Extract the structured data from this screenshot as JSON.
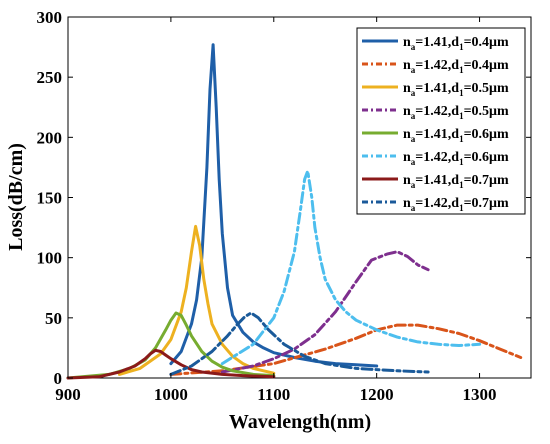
{
  "chart_data": {
    "type": "line",
    "title": "",
    "xlabel": "Wavelength(nm)",
    "ylabel": "Loss(dB/cm)",
    "xlim": [
      900,
      1350
    ],
    "ylim": [
      0,
      300
    ],
    "xticks": [
      900,
      1000,
      1100,
      1200,
      1300
    ],
    "yticks": [
      0,
      50,
      100,
      150,
      200,
      250,
      300
    ],
    "grid": false,
    "legend_position": "top-right",
    "series": [
      {
        "name": "n_a=1.41,d_1=0.4μm",
        "legend": {
          "n_sub": "a",
          "n_val": "=1.41,d",
          "d_sub": "1",
          "d_val": "=0.4μm"
        },
        "color": "#1f5fa8",
        "style": "solid",
        "x": [
          1000,
          1010,
          1020,
          1025,
          1030,
          1035,
          1038,
          1041,
          1044,
          1047,
          1050,
          1055,
          1060,
          1070,
          1080,
          1090,
          1100,
          1120,
          1140,
          1160,
          1180,
          1200
        ],
        "y": [
          12,
          22,
          45,
          65,
          100,
          175,
          240,
          277,
          225,
          165,
          120,
          75,
          52,
          38,
          30,
          25,
          21,
          17,
          14,
          12,
          11,
          10
        ]
      },
      {
        "name": "n_a=1.42,d_1=0.4μm",
        "legend": {
          "n_sub": "a",
          "n_val": "=1.42,d",
          "d_sub": "1",
          "d_val": "=0.4μm"
        },
        "color": "#d9541a",
        "style": "dashdot",
        "x": [
          1000,
          1050,
          1100,
          1150,
          1180,
          1200,
          1220,
          1240,
          1260,
          1280,
          1300,
          1320,
          1340
        ],
        "y": [
          3,
          6,
          12,
          24,
          33,
          40,
          44,
          44,
          41,
          37,
          31,
          24,
          17
        ]
      },
      {
        "name": "n_a=1.41,d_1=0.5μm",
        "legend": {
          "n_sub": "a",
          "n_val": "=1.41,d",
          "d_sub": "1",
          "d_val": "=0.5μm"
        },
        "color": "#edb120",
        "style": "solid",
        "x": [
          950,
          970,
          990,
          1000,
          1010,
          1015,
          1020,
          1024,
          1028,
          1032,
          1036,
          1040,
          1050,
          1060,
          1070,
          1080,
          1090,
          1100
        ],
        "y": [
          3,
          8,
          20,
          32,
          55,
          75,
          105,
          126,
          110,
          82,
          62,
          45,
          28,
          18,
          12,
          8,
          6,
          4
        ]
      },
      {
        "name": "n_a=1.42,d_1=0.5μm",
        "legend": {
          "n_sub": "a",
          "n_val": "=1.42,d",
          "d_sub": "1",
          "d_val": "=0.5μm"
        },
        "color": "#7e2f8e",
        "style": "dashdot",
        "x": [
          1050,
          1080,
          1100,
          1120,
          1140,
          1160,
          1180,
          1195,
          1210,
          1220,
          1230,
          1240,
          1250
        ],
        "y": [
          5,
          10,
          16,
          24,
          36,
          55,
          80,
          98,
          103,
          105,
          101,
          94,
          90
        ]
      },
      {
        "name": "n_a=1.41,d_1=0.6μm",
        "legend": {
          "n_sub": "a",
          "n_val": "=1.41,d",
          "d_sub": "1",
          "d_val": "=0.6μm"
        },
        "color": "#77ac30",
        "style": "solid",
        "x": [
          900,
          940,
          960,
          975,
          985,
          995,
          1000,
          1005,
          1010,
          1015,
          1020,
          1030,
          1040,
          1050,
          1060,
          1080,
          1100
        ],
        "y": [
          0,
          3,
          8,
          15,
          25,
          40,
          48,
          54,
          52,
          44,
          35,
          22,
          14,
          9,
          6,
          3,
          2
        ]
      },
      {
        "name": "n_a=1.42,d_1=0.6μm",
        "legend": {
          "n_sub": "a",
          "n_val": "=1.42,d",
          "d_sub": "1",
          "d_val": "=0.6μm"
        },
        "color": "#4dbeee",
        "style": "dashdot",
        "x": [
          1050,
          1080,
          1100,
          1110,
          1120,
          1126,
          1130,
          1133,
          1137,
          1140,
          1145,
          1150,
          1160,
          1170,
          1180,
          1200,
          1220,
          1240,
          1260,
          1280,
          1300
        ],
        "y": [
          12,
          28,
          50,
          72,
          105,
          140,
          165,
          172,
          150,
          125,
          100,
          82,
          65,
          55,
          48,
          40,
          34,
          30,
          28,
          27,
          28
        ]
      },
      {
        "name": "n_a=1.41,d_1=0.7μm",
        "legend": {
          "n_sub": "a",
          "n_val": "=1.41,d",
          "d_sub": "1",
          "d_val": "=0.7μm"
        },
        "color": "#8b1a1a",
        "style": "solid",
        "x": [
          900,
          930,
          950,
          965,
          975,
          980,
          985,
          990,
          995,
          1000,
          1010,
          1020,
          1030,
          1050,
          1070,
          1100
        ],
        "y": [
          0,
          1,
          5,
          10,
          16,
          20,
          23,
          22,
          19,
          16,
          11,
          7,
          5,
          3,
          2,
          1
        ]
      },
      {
        "name": "n_a=1.42,d_1=0.7μm",
        "legend": {
          "n_sub": "a",
          "n_val": "=1.42,d",
          "d_sub": "1",
          "d_val": "=0.7μm"
        },
        "color": "#1a5a9a",
        "style": "dashdot",
        "x": [
          1000,
          1020,
          1040,
          1055,
          1065,
          1072,
          1078,
          1085,
          1095,
          1110,
          1130,
          1150,
          1180,
          1220,
          1250
        ],
        "y": [
          3,
          10,
          22,
          35,
          45,
          51,
          54,
          50,
          40,
          28,
          18,
          12,
          8,
          6,
          5
        ]
      }
    ]
  }
}
